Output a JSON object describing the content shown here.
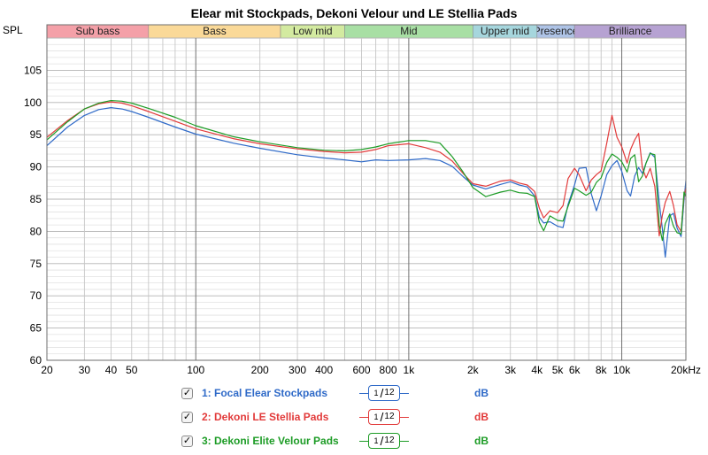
{
  "chart_data": {
    "type": "line",
    "title": "Elear mit Stockpads, Dekoni Velour und LE Stellia Pads",
    "ylabel": "SPL",
    "xscale": "log",
    "xlim": [
      20,
      20000
    ],
    "ylim": [
      60,
      110
    ],
    "grid": true,
    "yticks": [
      60,
      65,
      70,
      75,
      80,
      85,
      90,
      95,
      100,
      105
    ],
    "xtick_labels": [
      {
        "x": 20,
        "label": "20"
      },
      {
        "x": 30,
        "label": "30"
      },
      {
        "x": 40,
        "label": "40"
      },
      {
        "x": 50,
        "label": "50"
      },
      {
        "x": 100,
        "label": "100"
      },
      {
        "x": 200,
        "label": "200"
      },
      {
        "x": 300,
        "label": "300"
      },
      {
        "x": 400,
        "label": "400"
      },
      {
        "x": 600,
        "label": "600"
      },
      {
        "x": 800,
        "label": "800"
      },
      {
        "x": 1000,
        "label": "1k"
      },
      {
        "x": 2000,
        "label": "2k"
      },
      {
        "x": 3000,
        "label": "3k"
      },
      {
        "x": 4000,
        "label": "4k"
      },
      {
        "x": 5000,
        "label": "5k"
      },
      {
        "x": 6000,
        "label": "6k"
      },
      {
        "x": 8000,
        "label": "8k"
      },
      {
        "x": 10000,
        "label": "10k"
      },
      {
        "x": 20000,
        "label": "20kHz"
      }
    ],
    "bands": [
      {
        "label": "Sub bass",
        "from": 20,
        "to": 60,
        "color": "#f4a0a8"
      },
      {
        "label": "Bass",
        "from": 60,
        "to": 250,
        "color": "#fad998"
      },
      {
        "label": "Low mid",
        "from": 250,
        "to": 500,
        "color": "#d3eaa0"
      },
      {
        "label": "Mid",
        "from": 500,
        "to": 2000,
        "color": "#a8dfa4"
      },
      {
        "label": "Upper mid",
        "from": 2000,
        "to": 4000,
        "color": "#a6d6dd"
      },
      {
        "label": "Presence",
        "from": 4000,
        "to": 6000,
        "color": "#aec3e6"
      },
      {
        "label": "Brilliance",
        "from": 6000,
        "to": 20000,
        "color": "#b6a2d2"
      }
    ],
    "series": [
      {
        "name": "1: Focal Elear Stockpads",
        "color": "#2f6ac8",
        "points": [
          [
            20,
            93.3
          ],
          [
            25,
            96.2
          ],
          [
            30,
            98
          ],
          [
            35,
            98.9
          ],
          [
            40,
            99.2
          ],
          [
            45,
            99
          ],
          [
            50,
            98.6
          ],
          [
            60,
            97.7
          ],
          [
            80,
            96.2
          ],
          [
            100,
            95.1
          ],
          [
            150,
            93.7
          ],
          [
            200,
            92.9
          ],
          [
            300,
            91.9
          ],
          [
            400,
            91.4
          ],
          [
            500,
            91.1
          ],
          [
            600,
            90.8
          ],
          [
            700,
            91.1
          ],
          [
            800,
            91
          ],
          [
            1000,
            91.1
          ],
          [
            1200,
            91.3
          ],
          [
            1400,
            91
          ],
          [
            1600,
            90.1
          ],
          [
            1800,
            88.5
          ],
          [
            2000,
            87.2
          ],
          [
            2300,
            86.6
          ],
          [
            2700,
            87.3
          ],
          [
            3000,
            87.7
          ],
          [
            3300,
            87.2
          ],
          [
            3600,
            86.9
          ],
          [
            3900,
            85.5
          ],
          [
            4100,
            82.2
          ],
          [
            4300,
            81.3
          ],
          [
            4600,
            81.5
          ],
          [
            5000,
            80.8
          ],
          [
            5300,
            80.6
          ],
          [
            5600,
            84.2
          ],
          [
            6000,
            87.2
          ],
          [
            6300,
            89.8
          ],
          [
            6800,
            89.9
          ],
          [
            7200,
            85.8
          ],
          [
            7600,
            83.2
          ],
          [
            8000,
            85.5
          ],
          [
            8500,
            88.8
          ],
          [
            9000,
            90.2
          ],
          [
            9500,
            91
          ],
          [
            10000,
            89.3
          ],
          [
            10600,
            86.3
          ],
          [
            11000,
            85.5
          ],
          [
            11500,
            88.6
          ],
          [
            12000,
            89.9
          ],
          [
            12500,
            89
          ],
          [
            13000,
            90.6
          ],
          [
            13600,
            92.2
          ],
          [
            14300,
            91.5
          ],
          [
            15000,
            84.5
          ],
          [
            15500,
            80.5
          ],
          [
            16000,
            76
          ],
          [
            16800,
            82.4
          ],
          [
            17500,
            82.8
          ],
          [
            18200,
            80.5
          ],
          [
            19000,
            79.2
          ],
          [
            19600,
            84.8
          ],
          [
            20000,
            87.9
          ]
        ]
      },
      {
        "name": "2: Dekoni LE Stellia Pads",
        "color": "#e23a3a",
        "points": [
          [
            20,
            94.6
          ],
          [
            25,
            97.2
          ],
          [
            30,
            99
          ],
          [
            35,
            99.8
          ],
          [
            40,
            100.1
          ],
          [
            45,
            99.9
          ],
          [
            50,
            99.5
          ],
          [
            60,
            98.6
          ],
          [
            80,
            97.1
          ],
          [
            100,
            95.9
          ],
          [
            150,
            94.4
          ],
          [
            200,
            93.6
          ],
          [
            300,
            92.8
          ],
          [
            400,
            92.4
          ],
          [
            500,
            92.2
          ],
          [
            600,
            92.3
          ],
          [
            700,
            92.7
          ],
          [
            800,
            93.3
          ],
          [
            1000,
            93.6
          ],
          [
            1200,
            93
          ],
          [
            1400,
            92.3
          ],
          [
            1600,
            90.9
          ],
          [
            1800,
            89
          ],
          [
            2000,
            87.4
          ],
          [
            2300,
            87
          ],
          [
            2700,
            87.8
          ],
          [
            3000,
            88
          ],
          [
            3300,
            87.5
          ],
          [
            3600,
            87.2
          ],
          [
            3900,
            86.2
          ],
          [
            4100,
            83.6
          ],
          [
            4300,
            82.1
          ],
          [
            4600,
            83.2
          ],
          [
            5000,
            82.9
          ],
          [
            5300,
            84
          ],
          [
            5600,
            88.2
          ],
          [
            6000,
            89.8
          ],
          [
            6300,
            88.8
          ],
          [
            6800,
            86.3
          ],
          [
            7200,
            88
          ],
          [
            7600,
            88.8
          ],
          [
            8000,
            89.4
          ],
          [
            8500,
            93.7
          ],
          [
            9000,
            98
          ],
          [
            9500,
            94.6
          ],
          [
            10000,
            93.1
          ],
          [
            10600,
            90.6
          ],
          [
            11000,
            92.7
          ],
          [
            11500,
            94.2
          ],
          [
            12000,
            95.2
          ],
          [
            12500,
            89.8
          ],
          [
            13000,
            88.3
          ],
          [
            13600,
            89.8
          ],
          [
            14300,
            87
          ],
          [
            15000,
            79.3
          ],
          [
            15500,
            82.5
          ],
          [
            16000,
            84.5
          ],
          [
            16800,
            86.2
          ],
          [
            17500,
            84
          ],
          [
            18200,
            81
          ],
          [
            19000,
            80
          ],
          [
            19600,
            85.5
          ],
          [
            20000,
            86.7
          ]
        ]
      },
      {
        "name": "3: Dekoni Elite Velour Pads",
        "color": "#1d9c26",
        "points": [
          [
            20,
            94.2
          ],
          [
            25,
            97
          ],
          [
            30,
            99
          ],
          [
            35,
            99.9
          ],
          [
            40,
            100.3
          ],
          [
            45,
            100.2
          ],
          [
            50,
            99.9
          ],
          [
            60,
            99.1
          ],
          [
            80,
            97.7
          ],
          [
            100,
            96.4
          ],
          [
            150,
            94.7
          ],
          [
            200,
            93.9
          ],
          [
            300,
            93
          ],
          [
            400,
            92.6
          ],
          [
            500,
            92.5
          ],
          [
            600,
            92.7
          ],
          [
            700,
            93.1
          ],
          [
            800,
            93.6
          ],
          [
            1000,
            94.1
          ],
          [
            1200,
            94.1
          ],
          [
            1400,
            93.7
          ],
          [
            1600,
            91.6
          ],
          [
            1800,
            89.2
          ],
          [
            2000,
            86.8
          ],
          [
            2300,
            85.4
          ],
          [
            2700,
            86.1
          ],
          [
            3000,
            86.4
          ],
          [
            3300,
            86
          ],
          [
            3600,
            85.9
          ],
          [
            3900,
            85.4
          ],
          [
            4100,
            81.4
          ],
          [
            4300,
            80.1
          ],
          [
            4600,
            82.4
          ],
          [
            5000,
            81.7
          ],
          [
            5300,
            81.6
          ],
          [
            5600,
            83.9
          ],
          [
            6000,
            86.7
          ],
          [
            6300,
            86.3
          ],
          [
            6800,
            85.6
          ],
          [
            7200,
            86.1
          ],
          [
            7600,
            87.6
          ],
          [
            8000,
            88.3
          ],
          [
            8500,
            90.7
          ],
          [
            9000,
            92
          ],
          [
            9500,
            91.5
          ],
          [
            10000,
            90.8
          ],
          [
            10600,
            89.2
          ],
          [
            11000,
            91.3
          ],
          [
            11500,
            91.9
          ],
          [
            12000,
            87.7
          ],
          [
            12500,
            88.6
          ],
          [
            13000,
            90.6
          ],
          [
            13600,
            92.1
          ],
          [
            14300,
            91.9
          ],
          [
            15000,
            81
          ],
          [
            15500,
            78.6
          ],
          [
            16000,
            81.2
          ],
          [
            16800,
            82.7
          ],
          [
            17500,
            80.8
          ],
          [
            18200,
            79.8
          ],
          [
            19000,
            79.6
          ],
          [
            19600,
            86.1
          ],
          [
            20000,
            85.4
          ]
        ]
      }
    ]
  },
  "legend": [
    {
      "label": "1: Focal Elear Stockpads",
      "color": "#2f6ac8",
      "checked": "✓",
      "smoothing_num": "1",
      "smoothing_den": "12",
      "unit": "dB"
    },
    {
      "label": "2: Dekoni LE Stellia Pads",
      "color": "#e23a3a",
      "checked": "✓",
      "smoothing_num": "1",
      "smoothing_den": "12",
      "unit": "dB"
    },
    {
      "label": "3: Dekoni Elite Velour Pads",
      "color": "#1d9c26",
      "checked": "✓",
      "smoothing_num": "1",
      "smoothing_den": "12",
      "unit": "dB"
    }
  ]
}
